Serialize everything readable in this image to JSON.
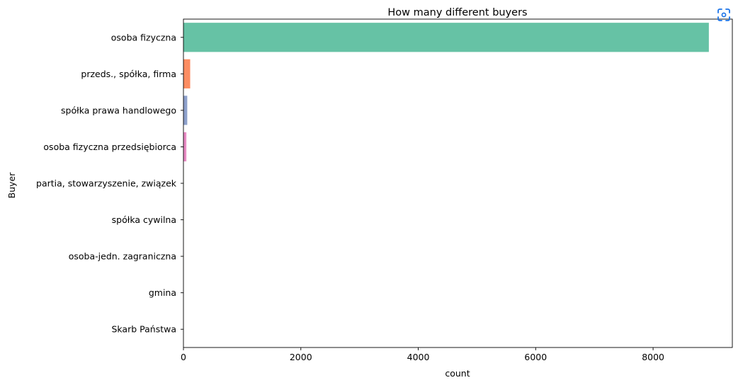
{
  "chart_data": {
    "type": "bar",
    "orientation": "horizontal",
    "title": "How many different buyers",
    "xlabel": "count",
    "ylabel": "Buyer",
    "xlim": [
      0,
      9350
    ],
    "xticks": [
      0,
      2000,
      4000,
      6000,
      8000
    ],
    "grid": false,
    "categories": [
      "osoba fizyczna",
      "przeds., spółka, firma",
      "spółka prawa handlowego",
      "osoba fizyczna przedsiębiorca",
      "partia, stowarzyszenie, związek",
      "spółka cywilna",
      "osoba-jedn. zagraniczna",
      "gmina",
      "Skarb Państwa"
    ],
    "values": [
      8950,
      115,
      65,
      50,
      5,
      4,
      3,
      2,
      1
    ],
    "colors": [
      "#66c2a5",
      "#fc8d62",
      "#8da0cb",
      "#e78ac3",
      "#a6d854",
      "#ffd92f",
      "#e5c494",
      "#b3b3b3",
      "#66c2a5"
    ]
  },
  "toolbar": {
    "focus_icon": "focus-scan-icon",
    "focus_color": "#1a73e8"
  }
}
